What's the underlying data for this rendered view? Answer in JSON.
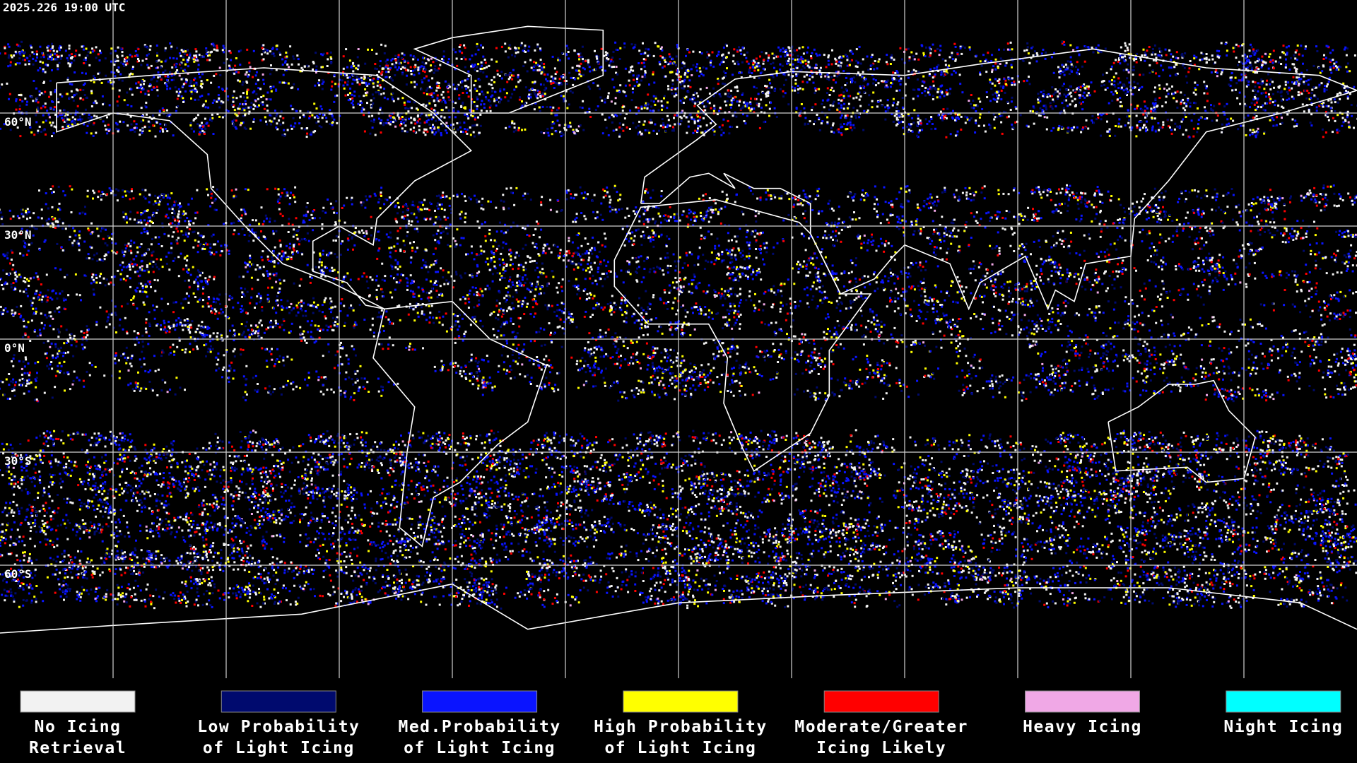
{
  "header": {
    "timestamp": "2025.226 19:00 UTC"
  },
  "map": {
    "lat_labels": [
      "60°N",
      "30°N",
      "0°N",
      "30°S",
      "60°S"
    ]
  },
  "legend": {
    "items": [
      {
        "lines": [
          "No Icing",
          "Retrieval"
        ],
        "color": "#f2f2f2"
      },
      {
        "lines": [
          "Low Probability",
          "of Light Icing"
        ],
        "color": "#000a6e"
      },
      {
        "lines": [
          "Med.Probability",
          "of Light Icing"
        ],
        "color": "#0a14ff"
      },
      {
        "lines": [
          "High Probability",
          "of Light Icing"
        ],
        "color": "#ffff00"
      },
      {
        "lines": [
          "Moderate/Greater",
          "Icing Likely"
        ],
        "color": "#ff0000"
      },
      {
        "lines": [
          "Heavy Icing"
        ],
        "color": "#f0a8e6"
      },
      {
        "lines": [
          "Night Icing"
        ],
        "color": "#00ffff"
      }
    ]
  }
}
